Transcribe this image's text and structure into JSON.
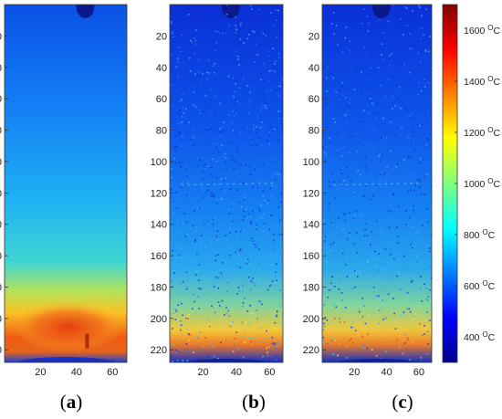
{
  "chart_data": {
    "type": "heatmap",
    "panels": [
      {
        "label": "(a)",
        "variant": "smooth"
      },
      {
        "label": "(b)",
        "variant": "noisy"
      },
      {
        "label": "(c)",
        "variant": "noisy-smoothed"
      }
    ],
    "x_ticks": [
      20,
      40,
      60
    ],
    "y_ticks": [
      20,
      40,
      60,
      80,
      100,
      120,
      140,
      160,
      180,
      200,
      220
    ],
    "xlim": [
      0,
      68
    ],
    "ylim": [
      0,
      228
    ],
    "y_reversed": true,
    "colorbar": {
      "colormap": "jet",
      "range": [
        300,
        1700
      ],
      "unit": "°C",
      "ticks": [
        400,
        600,
        800,
        1000,
        1200,
        1400,
        1600
      ],
      "tick_labels": [
        "400 °C",
        "600 °C",
        "800 °C",
        "1000 °C",
        "1200 °C",
        "1400 °C",
        "1600 °C"
      ]
    }
  }
}
